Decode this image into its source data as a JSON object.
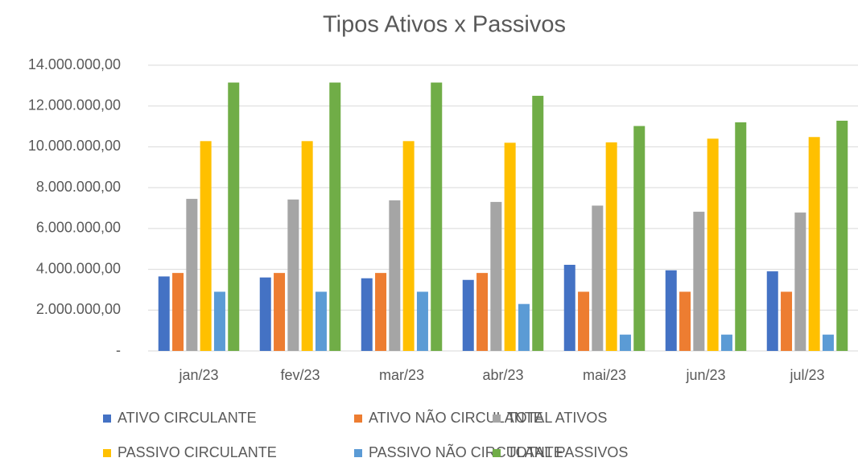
{
  "chart_data": {
    "type": "bar",
    "title": "Tipos Ativos x Passivos",
    "categories": [
      "jan/23",
      "fev/23",
      "mar/23",
      "abr/23",
      "mai/23",
      "jun/23",
      "jul/23"
    ],
    "series": [
      {
        "name": "ATIVO CIRCULANTE",
        "color": "#4472c4",
        "values": [
          3650000,
          3600000,
          3560000,
          3480000,
          4220000,
          3950000,
          3900000
        ]
      },
      {
        "name": "ATIVO NÃO CIRCULANTE",
        "color": "#ed7d31",
        "values": [
          3820000,
          3820000,
          3820000,
          3820000,
          2900000,
          2900000,
          2900000
        ]
      },
      {
        "name": "TOTAL ATIVOS",
        "color": "#a5a5a5",
        "values": [
          7450000,
          7420000,
          7380000,
          7300000,
          7120000,
          6820000,
          6780000
        ]
      },
      {
        "name": "PASSIVO CIRCULANTE",
        "color": "#ffc000",
        "values": [
          10280000,
          10280000,
          10280000,
          10200000,
          10220000,
          10400000,
          10480000
        ]
      },
      {
        "name": "PASSIVO NÃO CIRCULANTE",
        "color": "#5b9bd5",
        "values": [
          2900000,
          2900000,
          2900000,
          2300000,
          800000,
          800000,
          800000
        ]
      },
      {
        "name": "TOTAL PASSIVOS",
        "color": "#70ad47",
        "values": [
          13150000,
          13150000,
          13150000,
          12500000,
          11020000,
          11200000,
          11280000
        ]
      }
    ],
    "ylim": [
      0,
      14000000
    ],
    "yticks": [
      {
        "value": 0,
        "label": "-"
      },
      {
        "value": 2000000,
        "label": "2.000.000,00"
      },
      {
        "value": 4000000,
        "label": "4.000.000,00"
      },
      {
        "value": 6000000,
        "label": "6.000.000,00"
      },
      {
        "value": 8000000,
        "label": "8.000.000,00"
      },
      {
        "value": 10000000,
        "label": "10.000.000,00"
      },
      {
        "value": 12000000,
        "label": "12.000.000,00"
      },
      {
        "value": 14000000,
        "label": "14.000.000,00"
      }
    ],
    "grid": true,
    "legend": "bottom"
  }
}
